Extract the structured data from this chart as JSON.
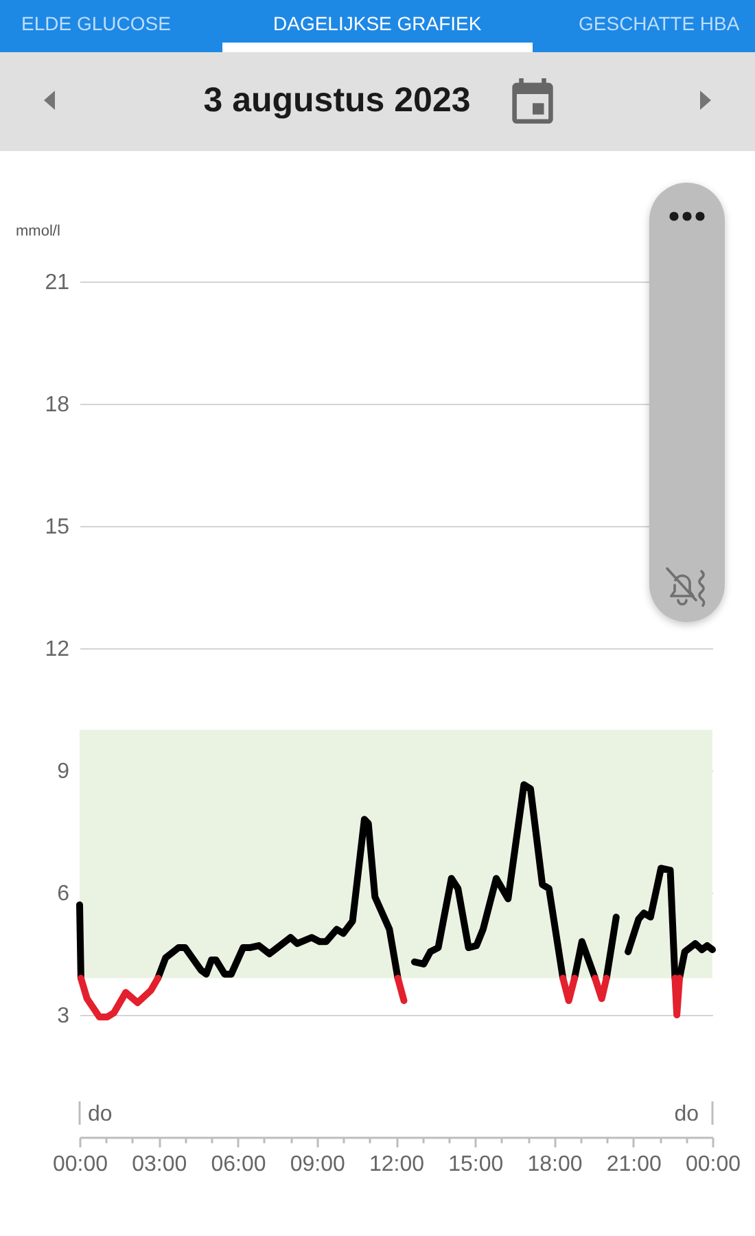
{
  "chart_data": {
    "type": "line",
    "title": "3 augustus 2023",
    "ylabel": "mmol/l",
    "annotations": [
      "ELDE GLUCOSE",
      "DAGELIJKSE GRAFIEK",
      "GESCHATTE HBA"
    ],
    "series": [
      {
        "color": "#000000",
        "x": [
          0,
          0.05,
          0.5,
          2.97,
          3.26,
          3.75,
          4.0,
          4.6,
          4.8,
          5.0,
          5.17,
          5.5,
          5.75,
          6.2,
          6.45,
          6.8,
          7.2,
          7.8,
          8.0,
          8.25,
          8.8,
          9.1,
          9.35,
          9.75,
          10.0,
          10.35,
          10.8,
          10.95,
          11.2,
          11.75,
          12.07,
          12.4,
          12.7,
          13.05,
          13.3,
          13.6,
          14.1,
          14.35,
          14.75,
          15.05,
          15.3,
          15.8,
          16.25,
          16.85,
          17.1,
          17.55,
          17.8,
          18.33,
          18.5,
          18.77,
          19.05,
          19.55,
          19.7,
          19.98,
          20.35,
          20.6,
          20.8,
          21.2,
          21.4,
          21.65,
          22.05,
          22.4,
          22.58,
          22.65,
          22.75,
          22.95,
          23.35,
          23.6,
          23.8,
          24
        ],
        "values": [
          5.7,
          3.9,
          null,
          3.9,
          4.4,
          4.65,
          4.65,
          4.1,
          4.0,
          4.35,
          4.35,
          4.0,
          4.0,
          4.65,
          4.65,
          4.7,
          4.5,
          4.8,
          4.9,
          4.75,
          4.9,
          4.8,
          4.8,
          5.1,
          5.0,
          5.3,
          7.8,
          7.7,
          5.9,
          5.1,
          3.9,
          null,
          4.3,
          4.25,
          4.55,
          4.65,
          6.35,
          6.1,
          4.65,
          4.7,
          5.1,
          6.35,
          5.85,
          8.65,
          8.55,
          6.2,
          6.1,
          3.9,
          null,
          3.9,
          4.8,
          3.9,
          null,
          3.9,
          5.4,
          null,
          4.55,
          5.35,
          5.5,
          5.4,
          6.6,
          6.55,
          3.9,
          null,
          3.9,
          4.55,
          4.75,
          4.6,
          4.7,
          4.6
        ]
      },
      {
        "color": "#e3202d",
        "x": [
          0.05,
          0.28,
          0.75,
          1.05,
          1.3,
          1.75,
          2.2,
          2.7,
          2.97,
          7,
          12.07,
          12.3,
          15,
          18.33,
          18.55,
          18.77,
          19.2,
          19.55,
          19.8,
          19.98,
          21,
          22.58,
          22.65,
          22.75
        ],
        "values": [
          3.9,
          3.4,
          2.95,
          2.95,
          3.05,
          3.55,
          3.3,
          3.6,
          3.9,
          null,
          3.9,
          3.35,
          null,
          3.9,
          3.35,
          3.9,
          null,
          3.9,
          3.4,
          3.9,
          null,
          3.9,
          3.0,
          3.9
        ]
      }
    ],
    "xlim": [
      0,
      24
    ],
    "xticks": [
      {
        "value": 0,
        "label": "00:00"
      },
      {
        "value": 1,
        "label": null
      },
      {
        "value": 2,
        "label": null
      },
      {
        "value": 3,
        "label": "03:00"
      },
      {
        "value": 4,
        "label": null
      },
      {
        "value": 5,
        "label": null
      },
      {
        "value": 6,
        "label": "06:00"
      },
      {
        "value": 7,
        "label": null
      },
      {
        "value": 8,
        "label": null
      },
      {
        "value": 9,
        "label": "09:00"
      },
      {
        "value": 10,
        "label": null
      },
      {
        "value": 11,
        "label": null
      },
      {
        "value": 12,
        "label": "12:00"
      },
      {
        "value": 13,
        "label": null
      },
      {
        "value": 14,
        "label": null
      },
      {
        "value": 15,
        "label": "15:00"
      },
      {
        "value": 16,
        "label": null
      },
      {
        "value": 17,
        "label": null
      },
      {
        "value": 18,
        "label": "18:00"
      },
      {
        "value": 19,
        "label": null
      },
      {
        "value": 20,
        "label": null
      },
      {
        "value": 21,
        "label": "21:00"
      },
      {
        "value": 22,
        "label": null
      },
      {
        "value": 23,
        "label": null
      },
      {
        "value": 24,
        "label": "00:00"
      }
    ],
    "ylim": [
      0,
      21
    ],
    "yticks": [
      3,
      6,
      9,
      12,
      15,
      18,
      21
    ],
    "ref_lines": [
      {
        "axis": "x",
        "value": 0,
        "label": "do",
        "color": "#bdbdbd"
      },
      {
        "axis": "x",
        "value": 24,
        "label": "do",
        "color": "#bdbdbd"
      }
    ],
    "bands": [
      {
        "axis": "y",
        "from": 3.9,
        "to": 10,
        "color": "#eaf3e2"
      }
    ],
    "grid": "y",
    "line_style": "solid"
  }
}
